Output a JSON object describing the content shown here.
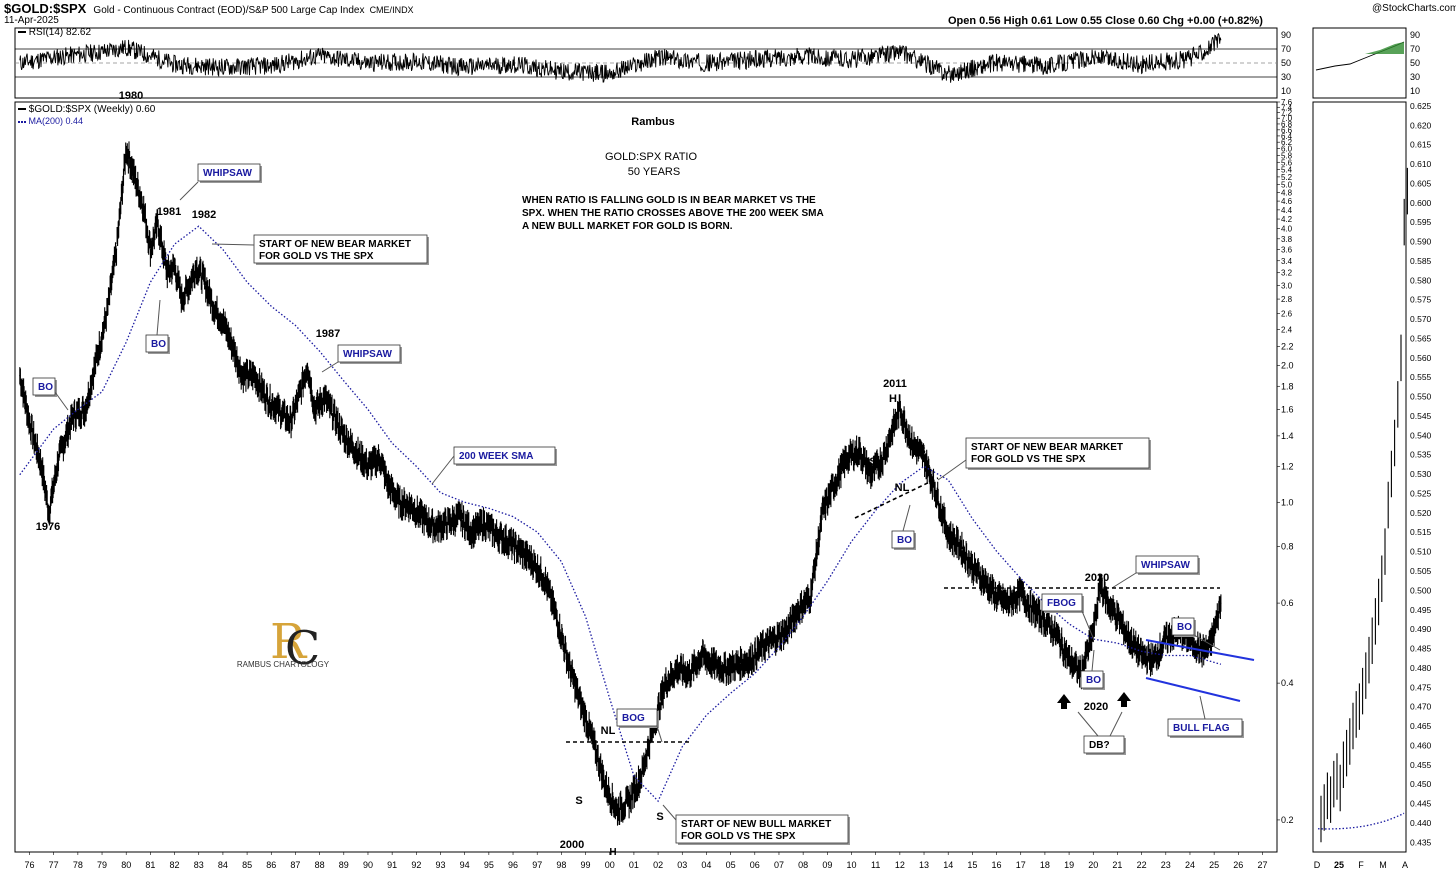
{
  "header": {
    "symbol": "$GOLD:$SPX",
    "description": "Gold - Continuous Contract (EOD)/S&P 500 Large Cap Index",
    "exchange": "CME/INDX",
    "date": "11-Apr-2025",
    "ohlc": "Open 0.56  High 0.61  Low 0.55  Close 0.60  Chg +0.00 (+0.82%)",
    "copyright": "@StockCharts.com"
  },
  "rsi": {
    "legend": "RSI(14) 82.62",
    "ticks": [
      "90",
      "70",
      "50",
      "30",
      "10"
    ]
  },
  "price": {
    "legend_main": "$GOLD:$SPX (Weekly) 0.60",
    "legend_ma": "MA(200) 0.44",
    "ma_color": "#1a1aa0"
  },
  "annotations": {
    "author": "Rambus",
    "title": "GOLD:SPX RATIO",
    "subtitle": "50 YEARS",
    "text_lines": [
      "WHEN RATIO IS FALLING GOLD IS IN BEAR MARKET VS THE",
      "SPX. WHEN THE RATIO CROSSES ABOVE THE 200 WEEK SMA",
      "A NEW BULL MARKET FOR GOLD IS BORN."
    ],
    "whipsaw": "WHIPSAW",
    "bo": "BO",
    "bog": "BOG",
    "fbog": "FBOG",
    "sma_label": "200 WEEK SMA",
    "bear_lines": [
      "START OF NEW BEAR MARKET",
      "FOR GOLD VS THE SPX"
    ],
    "bull_lines": [
      "START OF NEW BULL MARKET",
      "FOR GOLD VS THE SPX"
    ],
    "bull_flag": "BULL FLAG",
    "db": "DB?",
    "nl": "NL",
    "s": "S",
    "h": "H",
    "years": {
      "y1976": "1976",
      "y1980": "1980",
      "y1981": "1981",
      "y1982": "1982",
      "y1987": "1987",
      "y2000": "2000",
      "y2011": "2011",
      "y2020a": "2020",
      "y2020b": "2020"
    },
    "logo_text": "RAMBUS CHARTOLOGY",
    "logo_letters": "RC"
  },
  "chart_data": [
    {
      "type": "line",
      "title": "$GOLD:$SPX (Weekly)",
      "x_ticks": [
        "76",
        "77",
        "78",
        "79",
        "80",
        "81",
        "82",
        "83",
        "84",
        "85",
        "86",
        "87",
        "88",
        "89",
        "90",
        "91",
        "92",
        "93",
        "94",
        "95",
        "96",
        "97",
        "98",
        "99",
        "00",
        "01",
        "02",
        "03",
        "04",
        "05",
        "06",
        "07",
        "08",
        "09",
        "10",
        "11",
        "12",
        "13",
        "14",
        "15",
        "16",
        "17",
        "18",
        "19",
        "20",
        "21",
        "22",
        "23",
        "24",
        "25",
        "26",
        "27"
      ],
      "y_scale": "log",
      "y_ticks": [
        "0.2",
        "0.4",
        "0.6",
        "0.8",
        "1.0",
        "1.2",
        "1.4",
        "1.6",
        "1.8",
        "2.0",
        "2.2",
        "2.4",
        "2.6",
        "2.8",
        "3.0",
        "3.2",
        "3.4",
        "3.6",
        "3.8",
        "4.0",
        "4.2",
        "4.4",
        "4.6",
        "4.8",
        "5.0",
        "5.2",
        "5.4",
        "5.6",
        "5.8",
        "6.0",
        "6.2",
        "6.4",
        "6.6",
        "6.8",
        "7.0",
        "7.2",
        "7.4",
        "7.6"
      ],
      "series": [
        {
          "name": "$GOLD:$SPX (Weekly)",
          "x": [
            1975.6,
            1976.0,
            1976.5,
            1976.8,
            1977.2,
            1977.8,
            1978.3,
            1978.8,
            1979.2,
            1979.6,
            1980.0,
            1980.3,
            1980.7,
            1981.0,
            1981.3,
            1981.7,
            1982.0,
            1982.3,
            1982.6,
            1982.9,
            1983.2,
            1983.6,
            1984.0,
            1984.4,
            1984.8,
            1985.3,
            1985.8,
            1986.3,
            1986.8,
            1987.2,
            1987.5,
            1987.8,
            1988.2,
            1988.6,
            1989.0,
            1989.5,
            1990.0,
            1990.5,
            1990.8,
            1991.3,
            1991.8,
            1992.3,
            1992.8,
            1993.3,
            1993.8,
            1994.3,
            1994.8,
            1995.3,
            1995.8,
            1996.3,
            1996.8,
            1997.3,
            1997.8,
            1998.3,
            1998.8,
            1999.3,
            1999.8,
            2000.3,
            2000.8,
            2001.3,
            2001.8,
            2002.3,
            2002.8,
            2003.3,
            2003.8,
            2004.3,
            2004.8,
            2005.3,
            2005.8,
            2006.3,
            2006.8,
            2007.3,
            2007.8,
            2008.3,
            2008.8,
            2009.3,
            2009.8,
            2010.3,
            2010.8,
            2011.3,
            2011.7,
            2012.0,
            2012.5,
            2013.0,
            2013.5,
            2014.0,
            2014.5,
            2015.0,
            2015.5,
            2016.0,
            2016.5,
            2017.0,
            2017.5,
            2018.0,
            2018.5,
            2019.0,
            2019.5,
            2020.0,
            2020.3,
            2020.6,
            2021.0,
            2021.5,
            2022.0,
            2022.5,
            2023.0,
            2023.5,
            2024.0,
            2024.5,
            2024.8,
            2025.0,
            2025.28
          ],
          "y": [
            1.9,
            1.5,
            1.2,
            0.95,
            1.25,
            1.55,
            1.6,
            2.1,
            2.6,
            3.6,
            6.0,
            5.3,
            4.5,
            3.6,
            4.1,
            3.2,
            3.3,
            2.8,
            3.0,
            3.3,
            3.1,
            2.7,
            2.5,
            2.2,
            1.9,
            1.9,
            1.7,
            1.6,
            1.5,
            1.75,
            2.0,
            1.6,
            1.7,
            1.55,
            1.4,
            1.3,
            1.2,
            1.25,
            1.1,
            1.0,
            0.98,
            0.92,
            0.88,
            0.9,
            0.93,
            0.86,
            0.9,
            0.85,
            0.82,
            0.78,
            0.74,
            0.68,
            0.56,
            0.44,
            0.36,
            0.3,
            0.24,
            0.21,
            0.22,
            0.25,
            0.32,
            0.4,
            0.43,
            0.42,
            0.46,
            0.44,
            0.43,
            0.44,
            0.45,
            0.48,
            0.5,
            0.52,
            0.58,
            0.62,
            0.95,
            1.1,
            1.25,
            1.3,
            1.15,
            1.25,
            1.45,
            1.6,
            1.35,
            1.25,
            1.05,
            0.85,
            0.8,
            0.72,
            0.67,
            0.62,
            0.6,
            0.63,
            0.58,
            0.55,
            0.51,
            0.45,
            0.42,
            0.52,
            0.66,
            0.6,
            0.56,
            0.5,
            0.46,
            0.45,
            0.5,
            0.52,
            0.5,
            0.47,
            0.48,
            0.52,
            0.6
          ]
        },
        {
          "name": "MA(200)",
          "x": [
            1975.6,
            1977.0,
            1978.0,
            1979.0,
            1980.0,
            1981.0,
            1982.0,
            1983.0,
            1984.0,
            1985.0,
            1986.0,
            1987.0,
            1988.0,
            1989.0,
            1990.0,
            1991.0,
            1992.0,
            1993.0,
            1994.0,
            1995.0,
            1996.0,
            1997.0,
            1998.0,
            1999.0,
            2000.0,
            2001.0,
            2002.0,
            2003.0,
            2004.0,
            2005.0,
            2006.0,
            2007.0,
            2008.0,
            2009.0,
            2010.0,
            2011.0,
            2012.0,
            2013.0,
            2014.0,
            2015.0,
            2016.0,
            2017.0,
            2018.0,
            2019.0,
            2020.0,
            2021.0,
            2022.0,
            2023.0,
            2024.0,
            2025.28
          ],
          "y": [
            1.15,
            1.45,
            1.6,
            1.75,
            2.25,
            3.05,
            3.7,
            4.05,
            3.6,
            3.05,
            2.7,
            2.45,
            2.15,
            1.85,
            1.6,
            1.35,
            1.2,
            1.05,
            1.0,
            0.97,
            0.93,
            0.86,
            0.74,
            0.56,
            0.37,
            0.25,
            0.22,
            0.29,
            0.34,
            0.38,
            0.42,
            0.48,
            0.56,
            0.67,
            0.82,
            0.96,
            1.1,
            1.2,
            1.12,
            0.92,
            0.78,
            0.68,
            0.6,
            0.54,
            0.5,
            0.49,
            0.47,
            0.46,
            0.46,
            0.44
          ]
        }
      ]
    },
    {
      "type": "line",
      "title": "RSI(14)",
      "ylim": [
        0,
        100
      ],
      "y_ticks": [
        "10",
        "30",
        "50",
        "70",
        "90"
      ],
      "series": [
        {
          "name": "RSI(14)",
          "x": [
            1975.6,
            1977,
            1979,
            1980,
            1982,
            1984,
            1986,
            1988,
            1990,
            1992,
            1994,
            1996,
            1998,
            2000,
            2002,
            2004,
            2006,
            2008,
            2010,
            2012,
            2014,
            2016,
            2018,
            2020,
            2022,
            2024,
            2025.28
          ],
          "y": [
            50,
            58,
            66,
            72,
            48,
            44,
            46,
            60,
            50,
            52,
            44,
            48,
            38,
            35,
            58,
            50,
            55,
            60,
            55,
            66,
            34,
            50,
            46,
            58,
            48,
            56,
            82.62
          ]
        }
      ]
    }
  ],
  "inset": {
    "x_ticks": [
      "D",
      "25",
      "F",
      "M",
      "A"
    ],
    "y_ticks": [
      "0.625",
      "0.620",
      "0.615",
      "0.610",
      "0.605",
      "0.600",
      "0.595",
      "0.590",
      "0.585",
      "0.580",
      "0.575",
      "0.570",
      "0.565",
      "0.560",
      "0.555",
      "0.550",
      "0.545",
      "0.540",
      "0.535",
      "0.530",
      "0.525",
      "0.520",
      "0.515",
      "0.510",
      "0.505",
      "0.500",
      "0.495",
      "0.490",
      "0.485",
      "0.480",
      "0.475",
      "0.470",
      "0.465",
      "0.460",
      "0.455",
      "0.450",
      "0.445",
      "0.440",
      "0.435"
    ],
    "rsi_ticks": [
      "90",
      "70",
      "50",
      "30",
      "10"
    ]
  }
}
